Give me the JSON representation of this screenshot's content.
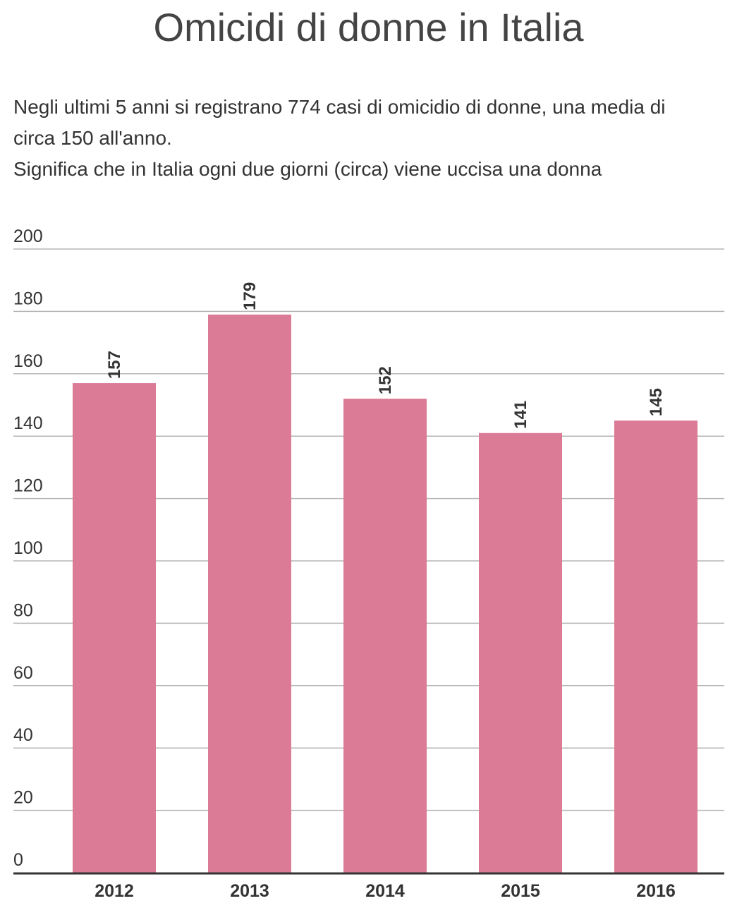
{
  "title": "Omicidi di donne in Italia",
  "subtitle": [
    "Negli ultimi 5 anni si registrano 774 casi di omicidio di donne, una media di",
    "circa 150 all'anno.",
    "Significa che in Italia ogni due giorni (circa) viene uccisa una donna"
  ],
  "colors": {
    "bar": "#db7b96",
    "grid": "#b5b5b5",
    "axis": "#333333"
  },
  "chart_data": {
    "type": "bar",
    "title": "Omicidi di donne in Italia",
    "categories": [
      "2012",
      "2013",
      "2014",
      "2015",
      "2016"
    ],
    "values": [
      157,
      179,
      152,
      141,
      145
    ],
    "ylim": [
      0,
      200
    ],
    "yticks": [
      0,
      20,
      40,
      60,
      80,
      100,
      120,
      140,
      160,
      180,
      200
    ],
    "grid": true,
    "data_labels": true,
    "xlabel": "",
    "ylabel": ""
  }
}
